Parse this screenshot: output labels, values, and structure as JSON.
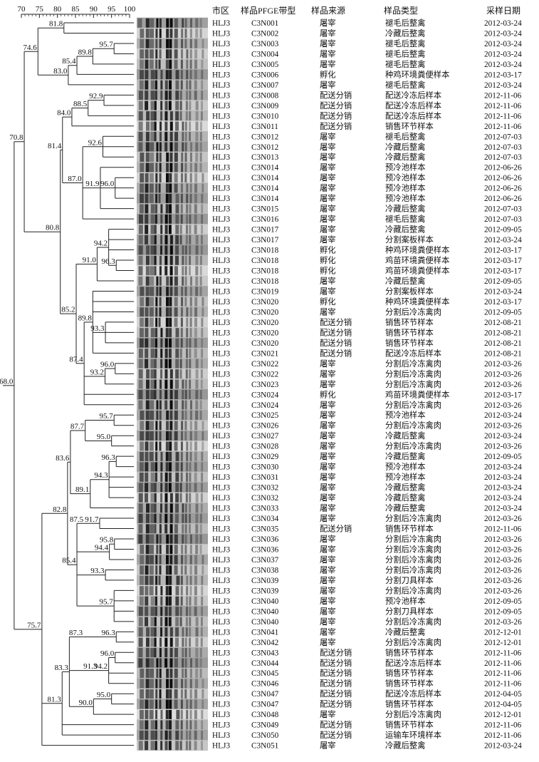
{
  "scale": {
    "ticks": [
      "70",
      "75",
      "80",
      "85",
      "90",
      "95",
      "100"
    ],
    "tick_values": [
      70,
      75,
      80,
      85,
      90,
      95,
      100
    ]
  },
  "headers": [
    "市区",
    "样品PFGE带型",
    "样品来源",
    "样品类型",
    "采样日期"
  ],
  "rows": [
    [
      "HLJ3",
      "C3N001",
      "屠宰",
      "褪毛后整禽",
      "2012-03-24"
    ],
    [
      "HLJ3",
      "C3N002",
      "屠宰",
      "冷藏后整禽",
      "2012-03-24"
    ],
    [
      "HLJ3",
      "C3N003",
      "屠宰",
      "褪毛后整禽",
      "2012-03-24"
    ],
    [
      "HLJ3",
      "C3N004",
      "屠宰",
      "褪毛后整禽",
      "2012-03-24"
    ],
    [
      "HLJ3",
      "C3N005",
      "屠宰",
      "褪毛后整禽",
      "2012-03-24"
    ],
    [
      "HLJ3",
      "C3N006",
      "孵化",
      "种鸡环境粪便样本",
      "2012-03-17"
    ],
    [
      "HLJ3",
      "C3N007",
      "屠宰",
      "褪毛后整禽",
      "2012-03-24"
    ],
    [
      "HLJ3",
      "C3N008",
      "配送分销",
      "配送冷冻后样本",
      "2012-11-06"
    ],
    [
      "HLJ3",
      "C3N009",
      "配送分销",
      "配送冷冻后样本",
      "2012-11-06"
    ],
    [
      "HLJ3",
      "C3N010",
      "配送分销",
      "配送冷冻后样本",
      "2012-11-06"
    ],
    [
      "HLJ3",
      "C3N011",
      "配送分销",
      "销售环节样本",
      "2012-11-06"
    ],
    [
      "HLJ3",
      "C3N012",
      "屠宰",
      "褪毛后整禽",
      "2012-07-03"
    ],
    [
      "HLJ3",
      "C3N012",
      "屠宰",
      "冷藏后整禽",
      "2012-07-03"
    ],
    [
      "HLJ3",
      "C3N013",
      "屠宰",
      "冷藏后整禽",
      "2012-07-03"
    ],
    [
      "HLJ3",
      "C3N014",
      "屠宰",
      "预冷池样本",
      "2012-06-26"
    ],
    [
      "HLJ3",
      "C3N014",
      "屠宰",
      "预冷池样本",
      "2012-06-26"
    ],
    [
      "HLJ3",
      "C3N014",
      "屠宰",
      "预冷池样本",
      "2012-06-26"
    ],
    [
      "HLJ3",
      "C3N014",
      "屠宰",
      "预冷池样本",
      "2012-06-26"
    ],
    [
      "HLJ3",
      "C3N015",
      "屠宰",
      "冷藏后整禽",
      "2012-07-03"
    ],
    [
      "HLJ3",
      "C3N016",
      "屠宰",
      "褪毛后整禽",
      "2012-07-03"
    ],
    [
      "HLJ3",
      "C3N017",
      "屠宰",
      "冷藏后整禽",
      "2012-09-05"
    ],
    [
      "HLJ3",
      "C3N017",
      "屠宰",
      "分割案板样本",
      "2012-03-24"
    ],
    [
      "HLJ3",
      "C3N018",
      "孵化",
      "种鸡环境粪便样本",
      "2012-03-17"
    ],
    [
      "HLJ3",
      "C3N018",
      "孵化",
      "鸡苗环境粪便样本",
      "2012-03-17"
    ],
    [
      "HLJ3",
      "C3N018",
      "孵化",
      "鸡苗环境粪便样本",
      "2012-03-17"
    ],
    [
      "HLJ3",
      "C3N018",
      "屠宰",
      "冷藏后整禽",
      "2012-09-05"
    ],
    [
      "HLJ3",
      "C3N019",
      "屠宰",
      "分割案板样本",
      "2012-03-24"
    ],
    [
      "HLJ3",
      "C3N020",
      "孵化",
      "种鸡环境粪便样本",
      "2012-03-17"
    ],
    [
      "HLJ3",
      "C3N020",
      "屠宰",
      "分割后冷冻禽肉",
      "2012-09-05"
    ],
    [
      "HLJ3",
      "C3N020",
      "配送分销",
      "销售环节样本",
      "2012-08-21"
    ],
    [
      "HLJ3",
      "C3N020",
      "配送分销",
      "销售环节样本",
      "2012-08-21"
    ],
    [
      "HLJ3",
      "C3N020",
      "配送分销",
      "销售环节样本",
      "2012-08-21"
    ],
    [
      "HLJ3",
      "C3N021",
      "配送分销",
      "配送冷冻后样本",
      "2012-08-21"
    ],
    [
      "HLJ3",
      "C3N022",
      "屠宰",
      "分割后冷冻禽肉",
      "2012-03-26"
    ],
    [
      "HLJ3",
      "C3N022",
      "屠宰",
      "分割后冷冻禽肉",
      "2012-03-26"
    ],
    [
      "HLJ3",
      "C3N023",
      "屠宰",
      "分割后冷冻禽肉",
      "2012-03-26"
    ],
    [
      "HLJ3",
      "C3N024",
      "孵化",
      "鸡苗环境粪便样本",
      "2012-03-17"
    ],
    [
      "HLJ3",
      "C3N024",
      "屠宰",
      "分割后冷冻禽肉",
      "2012-03-26"
    ],
    [
      "HLJ3",
      "C3N025",
      "屠宰",
      "预冷池样本",
      "2012-03-24"
    ],
    [
      "HLJ3",
      "C3N026",
      "屠宰",
      "分割后冷冻禽肉",
      "2012-03-26"
    ],
    [
      "HLJ3",
      "C3N027",
      "屠宰",
      "冷藏后整禽",
      "2012-03-24"
    ],
    [
      "HLJ3",
      "C3N028",
      "屠宰",
      "分割后冷冻禽肉",
      "2012-03-26"
    ],
    [
      "HLJ3",
      "C3N029",
      "屠宰",
      "冷藏后整禽",
      "2012-09-05"
    ],
    [
      "HLJ3",
      "C3N030",
      "屠宰",
      "预冷池样本",
      "2012-03-24"
    ],
    [
      "HLJ3",
      "C3N031",
      "屠宰",
      "预冷池样本",
      "2012-03-24"
    ],
    [
      "HLJ3",
      "C3N032",
      "屠宰",
      "冷藏后整禽",
      "2012-03-24"
    ],
    [
      "HLJ3",
      "C3N032",
      "屠宰",
      "冷藏后整禽",
      "2012-03-24"
    ],
    [
      "HLJ3",
      "C3N033",
      "屠宰",
      "冷藏后整禽",
      "2012-03-24"
    ],
    [
      "HLJ3",
      "C3N034",
      "屠宰",
      "分割后冷冻禽肉",
      "2012-03-26"
    ],
    [
      "HLJ3",
      "C3N035",
      "配送分销",
      "销售环节样本",
      "2012-11-06"
    ],
    [
      "HLJ3",
      "C3N036",
      "屠宰",
      "分割后冷冻禽肉",
      "2012-03-26"
    ],
    [
      "HLJ3",
      "C3N036",
      "屠宰",
      "分割后冷冻禽肉",
      "2012-03-26"
    ],
    [
      "HLJ3",
      "C3N037",
      "屠宰",
      "分割后冷冻禽肉",
      "2012-03-26"
    ],
    [
      "HLJ3",
      "C3N038",
      "屠宰",
      "分割后冷冻禽肉",
      "2012-03-26"
    ],
    [
      "HLJ3",
      "C3N039",
      "屠宰",
      "分割刀具样本",
      "2012-03-26"
    ],
    [
      "HLJ3",
      "C3N039",
      "屠宰",
      "分割后冷冻禽肉",
      "2012-03-26"
    ],
    [
      "HLJ3",
      "C3N040",
      "屠宰",
      "预冷池样本",
      "2012-09-05"
    ],
    [
      "HLJ3",
      "C3N040",
      "屠宰",
      "分割刀具样本",
      "2012-09-05"
    ],
    [
      "HLJ3",
      "C3N040",
      "屠宰",
      "分割后冷冻禽肉",
      "2012-03-26"
    ],
    [
      "HLJ3",
      "C3N041",
      "屠宰",
      "冷藏后整禽",
      "2012-12-01"
    ],
    [
      "HLJ3",
      "C3N042",
      "屠宰",
      "分割后冷冻禽肉",
      "2012-12-01"
    ],
    [
      "HLJ3",
      "C3N043",
      "配送分销",
      "销售环节样本",
      "2012-11-06"
    ],
    [
      "HLJ3",
      "C3N044",
      "配送分销",
      "配送冷冻后样本",
      "2012-11-06"
    ],
    [
      "HLJ3",
      "C3N045",
      "配送分销",
      "销售环节样本",
      "2012-11-06"
    ],
    [
      "HLJ3",
      "C3N046",
      "配送分销",
      "销售环节样本",
      "2012-11-06"
    ],
    [
      "HLJ3",
      "C3N047",
      "配送分销",
      "配送冷冻后样本",
      "2012-04-05"
    ],
    [
      "HLJ3",
      "C3N047",
      "配送分销",
      "销售环节样本",
      "2012-04-05"
    ],
    [
      "HLJ3",
      "C3N048",
      "屠宰",
      "分割后冷冻禽肉",
      "2012-12-01"
    ],
    [
      "HLJ3",
      "C3N049",
      "配送分销",
      "销售环节样本",
      "2012-11-06"
    ],
    [
      "HLJ3",
      "C3N050",
      "配送分销",
      "运输车环境样本",
      "2012-11-06"
    ],
    [
      "HLJ3",
      "C3N051",
      "屠宰",
      "冷藏后整禽",
      "2012-03-24"
    ]
  ],
  "tree": {
    "s": 68.0,
    "c": [
      {
        "s": 70.8,
        "c": [
          {
            "s": 74.6,
            "c": [
              {
                "s": 81.8,
                "c": [
                  0,
                  1
                ]
              },
              {
                "s": 83.0,
                "c": [
                  {
                    "s": 85.4,
                    "c": [
                      {
                        "s": 89.8,
                        "c": [
                          {
                            "s": 95.7,
                            "c": [
                              2,
                              3
                            ]
                          },
                          4
                        ]
                      },
                      5
                    ]
                  },
                  6
                ]
              }
            ]
          },
          {
            "s": 80.8,
            "c": [
              {
                "s": 81.4,
                "c": [
                  {
                    "s": 84.0,
                    "c": [
                      {
                        "s": 88.5,
                        "c": [
                          {
                            "s": 92.9,
                            "c": [
                              7,
                              8
                            ]
                          },
                          9
                        ]
                      },
                      10
                    ]
                  },
                  {
                    "s": 87.0,
                    "c": [
                      {
                        "s": 92.6,
                        "c": [
                          11,
                          12,
                          13
                        ]
                      },
                      {
                        "s": 91.9,
                        "c": [
                          14,
                          {
                            "s": 96.0,
                            "c": [
                              15,
                              16,
                              17
                            ]
                          },
                          18
                        ]
                      },
                      19
                    ]
                  }
                ]
              },
              {
                "s": 85.2,
                "c": [
                  {
                    "s": 91.0,
                    "c": [
                      {
                        "s": 94.2,
                        "c": [
                          20,
                          21,
                          22,
                          {
                            "s": 96.3,
                            "c": [
                              23,
                              24
                            ]
                          }
                        ]
                      },
                      25
                    ]
                  },
                  {
                    "s": 87.4,
                    "c": [
                      {
                        "s": 89.8,
                        "c": [
                          26,
                          27,
                          28,
                          {
                            "s": 93.3,
                            "c": [
                              29,
                              30,
                              31
                            ]
                          },
                          32
                        ]
                      },
                      {
                        "s": 93.2,
                        "c": [
                          {
                            "s": 96.0,
                            "c": [
                              33,
                              34
                            ]
                          },
                          35
                        ]
                      },
                      36,
                      37
                    ]
                  }
                ]
              }
            ]
          }
        ]
      },
      {
        "s": 75.7,
        "c": [
          {
            "s": 82.8,
            "c": [
              {
                "s": 83.6,
                "c": [
                  {
                    "s": 87.7,
                    "c": [
                      {
                        "s": 95.7,
                        "c": [
                          38,
                          39
                        ]
                      },
                      {
                        "s": 95.0,
                        "c": [
                          40,
                          41
                        ]
                      }
                    ]
                  },
                  {
                    "s": 89.1,
                    "c": [
                      {
                        "s": 94.3,
                        "c": [
                          {
                            "s": 96.3,
                            "c": [
                              42,
                              43
                            ]
                          },
                          44,
                          45,
                          46
                        ]
                      },
                      47
                    ]
                  }
                ]
              },
              {
                "s": 85.4,
                "c": [
                  {
                    "s": 87.5,
                    "c": [
                      {
                        "s": 91.7,
                        "c": [
                          48,
                          49
                        ]
                      }
                    ]
                  },
                  {
                    "s": 94.4,
                    "c": [
                      {
                        "s": 95.8,
                        "c": [
                          50,
                          51
                        ]
                      },
                      52
                    ]
                  },
                  {
                    "s": 93.3,
                    "c": [
                      53,
                      54
                    ]
                  },
                  {
                    "s": 95.7,
                    "c": [
                      55,
                      56,
                      57,
                      58
                    ]
                  }
                ]
              }
            ]
          },
          {
            "s": 81.3,
            "c": [
              {
                "s": 83.3,
                "c": [
                  {
                    "s": 87.3,
                    "c": [
                      {
                        "s": 96.3,
                        "c": [
                          59,
                          60
                        ]
                      }
                    ]
                  },
                  {
                    "s": 91.3,
                    "c": [
                      {
                        "s": 94.2,
                        "c": [
                          {
                            "s": 96.0,
                            "c": [
                              61,
                              62
                            ]
                          },
                          63,
                          64
                        ]
                      }
                    ]
                  },
                  {
                    "s": 90.0,
                    "c": [
                      {
                        "s": 95.0,
                        "c": [
                          65,
                          66
                        ]
                      },
                      67
                    ]
                  }
                ]
              },
              68,
              69
            ]
          },
          70
        ]
      }
    ]
  }
}
